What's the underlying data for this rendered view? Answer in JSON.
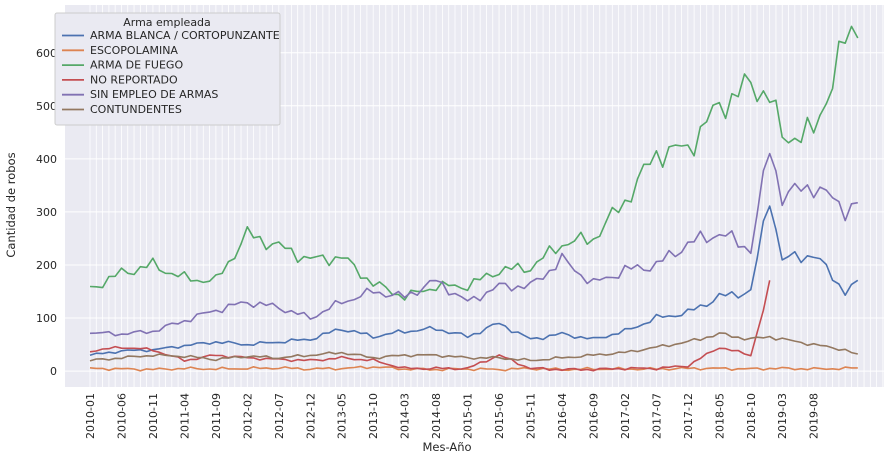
{
  "chart_data": {
    "type": "line",
    "xlabel": "Mes-Año",
    "ylabel": "Cantidad de robos",
    "ylim": [
      -30,
      690
    ],
    "yticks": [
      0,
      100,
      200,
      300,
      400,
      500,
      600
    ],
    "x_range": [
      "2010-01",
      "2020-12"
    ],
    "xtick_labels": [
      "2010-01",
      "2010-06",
      "2010-11",
      "2011-04",
      "2011-09",
      "2012-02",
      "2012-07",
      "2012-12",
      "2013-05",
      "2013-10",
      "2014-03",
      "2014-08",
      "2015-01",
      "2015-06",
      "2015-11",
      "2016-04",
      "2016-09",
      "2017-02",
      "2017-07",
      "2017-12",
      "2018-05",
      "2018-10",
      "2019-03",
      "2019-08"
    ],
    "grid": true,
    "legend_title": "Arma empleada",
    "legend_position": "top-left",
    "anchors": [
      "2010-01",
      "2010-06",
      "2010-11",
      "2011-04",
      "2011-09",
      "2012-02",
      "2012-07",
      "2012-12",
      "2013-05",
      "2013-10",
      "2014-03",
      "2014-08",
      "2015-01",
      "2015-06",
      "2015-11",
      "2016-04",
      "2016-09",
      "2017-02",
      "2017-07",
      "2017-12",
      "2018-05",
      "2018-10",
      "2019-01",
      "2019-03",
      "2019-08",
      "2020-01",
      "2020-03"
    ],
    "series": [
      {
        "name": "ARMA BLANCA / CORTOPUNZANTE",
        "color": "#4c72b0",
        "values": [
          30,
          38,
          40,
          48,
          55,
          50,
          55,
          60,
          80,
          65,
          75,
          80,
          65,
          90,
          60,
          70,
          60,
          75,
          100,
          110,
          140,
          150,
          330,
          210,
          220,
          150,
          165
        ]
      },
      {
        "name": "ESCOPOLAMINA",
        "color": "#dd8452",
        "values": [
          5,
          4,
          3,
          5,
          4,
          5,
          6,
          4,
          5,
          8,
          4,
          3,
          4,
          3,
          5,
          3,
          4,
          4,
          4,
          5,
          5,
          4,
          5,
          5,
          4,
          5,
          6
        ]
      },
      {
        "name": "ARMA DE FUEGO",
        "color": "#55a868",
        "values": [
          155,
          185,
          200,
          175,
          170,
          258,
          235,
          210,
          215,
          165,
          140,
          160,
          160,
          190,
          195,
          240,
          250,
          320,
          410,
          420,
          500,
          540,
          520,
          440,
          450,
          620,
          655
        ]
      },
      {
        "name": "NO REPORTADO",
        "color": "#c44e52",
        "values": [
          38,
          45,
          40,
          20,
          30,
          25,
          22,
          20,
          25,
          20,
          5,
          5,
          5,
          30,
          5,
          3,
          3,
          5,
          5,
          10,
          45,
          30,
          160,
          null,
          null,
          null,
          null
        ]
      },
      {
        "name": "SIN EMPLEO DE ARMAS",
        "color": "#8172b3",
        "values": [
          72,
          70,
          75,
          95,
          115,
          130,
          120,
          100,
          130,
          150,
          140,
          170,
          130,
          160,
          160,
          210,
          165,
          190,
          200,
          240,
          260,
          230,
          420,
          330,
          350,
          305,
          315
        ]
      },
      {
        "name": "CONTUNDENTES",
        "color": "#937860",
        "values": [
          20,
          25,
          30,
          28,
          22,
          28,
          25,
          30,
          35,
          25,
          30,
          30,
          25,
          25,
          20,
          25,
          30,
          35,
          45,
          55,
          70,
          60,
          65,
          60,
          50,
          40,
          30
        ]
      }
    ]
  }
}
